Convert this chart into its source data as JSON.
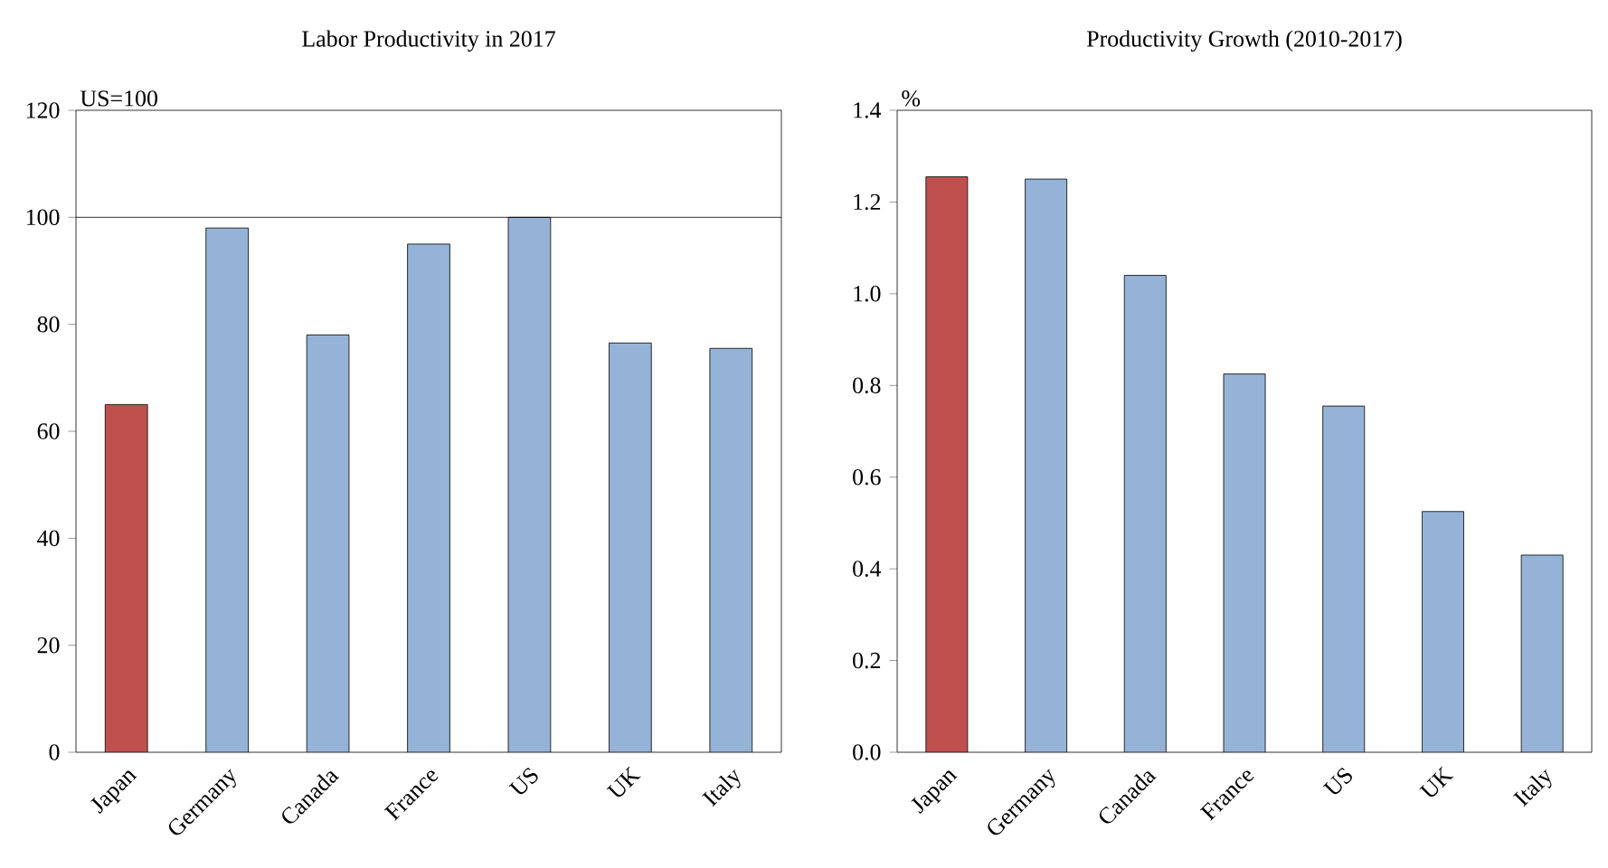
{
  "chart_data": [
    {
      "type": "bar",
      "title": "Labor Productivity in 2017",
      "ylabel": "US=100",
      "categories": [
        "Japan",
        "Germany",
        "Canada",
        "France",
        "US",
        "UK",
        "Italy"
      ],
      "values": [
        65,
        98,
        78,
        95,
        100,
        76.5,
        75.5
      ],
      "colors": [
        "#c0504d",
        "#95b3d7",
        "#95b3d7",
        "#95b3d7",
        "#95b3d7",
        "#95b3d7",
        "#95b3d7"
      ],
      "ylim": [
        0,
        120
      ],
      "yticks": [
        0,
        20,
        40,
        60,
        80,
        100,
        120
      ],
      "ref_lines": [
        {
          "axis": "y",
          "value": 100,
          "color": "#000000"
        }
      ]
    },
    {
      "type": "bar",
      "title": "Productivity Growth (2010-2017)",
      "ylabel": "%",
      "categories": [
        "Japan",
        "Germany",
        "Canada",
        "France",
        "US",
        "UK",
        "Italy"
      ],
      "values": [
        1.255,
        1.25,
        1.04,
        0.825,
        0.755,
        0.525,
        0.43
      ],
      "colors": [
        "#c0504d",
        "#95b3d7",
        "#95b3d7",
        "#95b3d7",
        "#95b3d7",
        "#95b3d7",
        "#95b3d7"
      ],
      "ylim": [
        0,
        1.4
      ],
      "yticks": [
        {
          "value": 0,
          "label": "0.0"
        },
        {
          "value": 0.2,
          "label": "0.2"
        },
        {
          "value": 0.4,
          "label": "0.4"
        },
        {
          "value": 0.6,
          "label": "0.6"
        },
        {
          "value": 0.8,
          "label": "0.8"
        },
        {
          "value": 1.0,
          "label": "1.0"
        },
        {
          "value": 1.2,
          "label": "1.2"
        },
        {
          "value": 1.4,
          "label": "1.4"
        }
      ]
    }
  ]
}
